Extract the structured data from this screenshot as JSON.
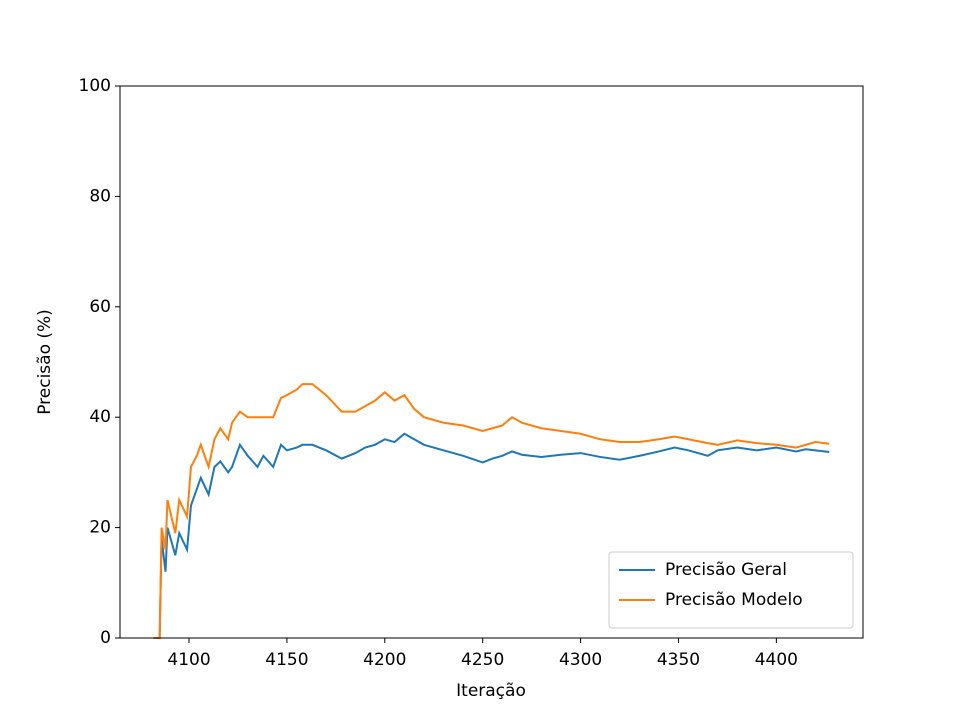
{
  "chart_data": {
    "type": "line",
    "xlabel": "Iteração",
    "ylabel": "Precisão (%)",
    "x": [
      4082,
      4085,
      4086,
      4088,
      4089,
      4093,
      4095,
      4099,
      4101,
      4104,
      4106,
      4110,
      4113,
      4116,
      4120,
      4122,
      4126,
      4130,
      4135,
      4138,
      4143,
      4147,
      4150,
      4155,
      4158,
      4163,
      4170,
      4178,
      4185,
      4190,
      4195,
      4200,
      4205,
      4210,
      4215,
      4220,
      4230,
      4240,
      4250,
      4255,
      4260,
      4265,
      4270,
      4280,
      4290,
      4300,
      4310,
      4320,
      4330,
      4340,
      4348,
      4355,
      4365,
      4370,
      4380,
      4390,
      4400,
      4410,
      4415,
      4420,
      4427
    ],
    "series": [
      {
        "name": "Precisão Geral",
        "color": "#1f77b4",
        "values": [
          0,
          0,
          18,
          12,
          20,
          15,
          19,
          16,
          24,
          27,
          29,
          26,
          31,
          32,
          30,
          31,
          35,
          33,
          31,
          33,
          31,
          35,
          34,
          34.5,
          35,
          35,
          34,
          32.5,
          33.5,
          34.5,
          35,
          36,
          35.5,
          37,
          36,
          35,
          34,
          33,
          31.8,
          32.5,
          33,
          33.8,
          33.2,
          32.8,
          33.2,
          33.5,
          32.8,
          32.3,
          33,
          33.8,
          34.5,
          34,
          33,
          34,
          34.5,
          34,
          34.5,
          33.8,
          34.2,
          34,
          33.7
        ]
      },
      {
        "name": "Precisão Modelo",
        "color": "#ff7f0e",
        "values": [
          0,
          0,
          20,
          16,
          25,
          19,
          25,
          22,
          31,
          33,
          35,
          31,
          36,
          38,
          36,
          39,
          41,
          40,
          40,
          40,
          40,
          43.5,
          44,
          45,
          46,
          46,
          44,
          41,
          41,
          42,
          43,
          44.5,
          43,
          44,
          41.5,
          40,
          39,
          38.5,
          37.5,
          38,
          38.5,
          40,
          39,
          38,
          37.5,
          37,
          36,
          35.5,
          35.5,
          36,
          36.5,
          36,
          35.3,
          35,
          35.8,
          35.3,
          35,
          34.5,
          35,
          35.5,
          35.2
        ]
      }
    ],
    "xlim": [
      4064.75,
      4444.25
    ],
    "xticks": [
      4100,
      4150,
      4200,
      4250,
      4300,
      4350,
      4400
    ],
    "ylim": [
      0,
      100
    ],
    "yticks": [
      0,
      20,
      40,
      60,
      80,
      100
    ],
    "legend": "lower right"
  }
}
